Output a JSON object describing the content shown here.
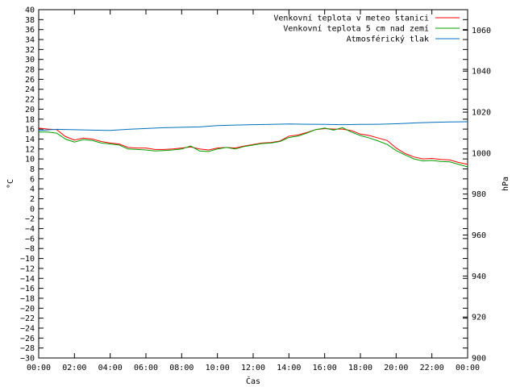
{
  "chart_data": {
    "type": "line",
    "xlabel": "Čas",
    "ylabel": "°C",
    "y2label": "hPa",
    "x_ticks": [
      "00:00",
      "02:00",
      "04:00",
      "06:00",
      "08:00",
      "10:00",
      "12:00",
      "14:00",
      "16:00",
      "18:00",
      "20:00",
      "22:00",
      "00:00"
    ],
    "xlim_hours": [
      0,
      24
    ],
    "ylim": [
      -30,
      40
    ],
    "y_ticks": [
      40,
      38,
      36,
      34,
      32,
      30,
      28,
      26,
      24,
      22,
      20,
      18,
      16,
      14,
      12,
      10,
      8,
      6,
      4,
      2,
      0,
      -2,
      -4,
      -6,
      -8,
      -10,
      -12,
      -14,
      -16,
      -18,
      -20,
      -22,
      -24,
      -26,
      -28,
      -30
    ],
    "y2lim": [
      900,
      1070
    ],
    "y2_ticks": [
      1060,
      1040,
      1020,
      1000,
      980,
      960,
      940,
      920,
      900
    ],
    "grid": false,
    "legend_position": "top-right",
    "series": [
      {
        "name": "Venkovní teplota v meteo stanici",
        "axis": "left",
        "color": "#ff0000",
        "x": [
          0,
          0.5,
          1,
          1.5,
          2,
          2.5,
          3,
          3.5,
          4,
          4.5,
          5,
          5.5,
          6,
          6.5,
          7,
          7.5,
          8,
          8.5,
          9,
          9.5,
          10,
          10.5,
          11,
          11.5,
          12,
          12.5,
          13,
          13.5,
          14,
          14.5,
          15,
          15.5,
          16,
          16.5,
          17,
          17.5,
          18,
          18.5,
          19,
          19.5,
          20,
          20.5,
          21,
          21.5,
          22,
          22.5,
          23,
          23.5,
          24
        ],
        "values": [
          16.2,
          16.0,
          15.9,
          14.5,
          13.8,
          14.2,
          14.0,
          13.5,
          13.2,
          13.0,
          12.3,
          12.2,
          12.2,
          11.9,
          11.9,
          12.0,
          12.2,
          12.4,
          12.0,
          11.8,
          12.2,
          12.3,
          12.2,
          12.6,
          12.9,
          13.2,
          13.3,
          13.6,
          14.6,
          14.8,
          15.3,
          15.9,
          16.1,
          16.0,
          16.0,
          15.7,
          15.0,
          14.7,
          14.2,
          13.7,
          12.2,
          11.1,
          10.4,
          10.0,
          10.1,
          9.9,
          9.8,
          9.3,
          8.9
        ]
      },
      {
        "name": "Venkovní teplota 5 cm nad zemí",
        "axis": "left",
        "color": "#00a000",
        "x": [
          0,
          0.5,
          1,
          1.5,
          2,
          2.5,
          3,
          3.5,
          4,
          4.5,
          5,
          5.5,
          6,
          6.5,
          7,
          7.5,
          8,
          8.5,
          9,
          9.5,
          10,
          10.5,
          11,
          11.5,
          12,
          12.5,
          13,
          13.5,
          14,
          14.5,
          15,
          15.5,
          16,
          16.5,
          17,
          17.5,
          18,
          18.5,
          19,
          19.5,
          20,
          20.5,
          21,
          21.5,
          22,
          22.5,
          23,
          23.5,
          24
        ],
        "values": [
          15.4,
          15.4,
          15.2,
          14.0,
          13.4,
          13.9,
          13.7,
          13.2,
          13.0,
          12.8,
          12.0,
          11.9,
          11.8,
          11.6,
          11.7,
          11.8,
          12.0,
          12.6,
          11.6,
          11.5,
          12.0,
          12.3,
          12.0,
          12.5,
          12.8,
          13.1,
          13.2,
          13.5,
          14.3,
          14.6,
          15.2,
          15.9,
          16.2,
          15.8,
          16.3,
          15.4,
          14.7,
          14.2,
          13.6,
          12.9,
          11.7,
          10.8,
          10.0,
          9.6,
          9.7,
          9.5,
          9.4,
          8.9,
          8.4
        ]
      },
      {
        "name": "Atmosférický tlak",
        "axis": "right",
        "color": "#0070c0",
        "x": [
          0,
          1,
          2,
          3,
          4,
          5,
          6,
          7,
          8,
          9,
          10,
          11,
          12,
          13,
          14,
          15,
          16,
          17,
          18,
          19,
          20,
          21,
          22,
          23,
          24
        ],
        "values": [
          1011.0,
          1011.6,
          1011.4,
          1011.2,
          1011.1,
          1011.6,
          1012.0,
          1012.4,
          1012.6,
          1012.8,
          1013.4,
          1013.7,
          1013.9,
          1014.0,
          1014.2,
          1014.1,
          1014.0,
          1013.9,
          1014.0,
          1014.1,
          1014.3,
          1014.7,
          1015.0,
          1015.2,
          1015.3
        ]
      }
    ]
  }
}
